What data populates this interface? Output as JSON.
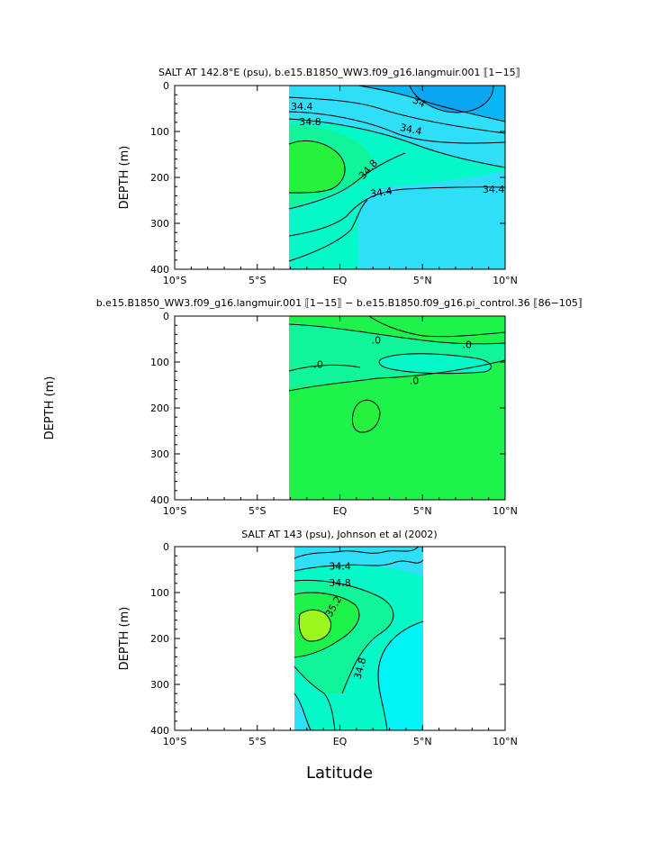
{
  "figure": {
    "ylabel": "DEPTH (m)",
    "xlabel": "Latitude"
  },
  "colors": {
    "deep_blue": "#09b5f5",
    "light_blue": "#2fdff8",
    "cyan": "#00f4f6",
    "aqua": "#05f8c8",
    "teal_green": "#10f59a",
    "green": "#1ef34b",
    "bright_green": "#26f23e",
    "lime": "#9bf71d",
    "line": "#000000"
  },
  "chart_data": [
    {
      "type": "heatmap",
      "title": "SALT AT 142.8°E (psu), b.e15.B1850_WW3.f09_g16.langmuir.001 ⟦1−15⟧",
      "ylabel": "DEPTH (m)",
      "xlabel": "",
      "xlim": [
        -10,
        10
      ],
      "ylim": [
        400,
        0
      ],
      "x_ticks": [
        -10,
        -5,
        0,
        5,
        10
      ],
      "x_tick_labels": [
        "10°S",
        "5°S",
        "EQ",
        "5°N",
        "10°N"
      ],
      "y_ticks": [
        0,
        100,
        200,
        300,
        400
      ],
      "y_tick_labels": [
        "0",
        "100",
        "200",
        "300",
        "400"
      ],
      "data_extent_lat": [
        -3.1,
        10
      ],
      "contour_labels": [
        {
          "text": "34",
          "lat": 4.8,
          "depth": 35,
          "rot": 25
        },
        {
          "text": "34.4",
          "lat": -2.3,
          "depth": 45,
          "rot": 0
        },
        {
          "text": "34.8",
          "lat": -1.8,
          "depth": 78,
          "rot": 0
        },
        {
          "text": "34.4",
          "lat": 4.3,
          "depth": 95,
          "rot": 12
        },
        {
          "text": "34.8",
          "lat": 1.7,
          "depth": 182,
          "rot": -48
        },
        {
          "text": "34.4",
          "lat": 2.5,
          "depth": 232,
          "rot": -8
        },
        {
          "text": "34.4",
          "lat": 9.3,
          "depth": 225,
          "rot": 0
        }
      ]
    },
    {
      "type": "heatmap",
      "title": "b.e15.B1850_WW3.f09_g16.langmuir.001 ⟦1−15⟧ − b.e15.B1850.f09_g16.pi_control.36 ⟦86−105⟧",
      "ylabel": "DEPTH (m)",
      "xlabel": "",
      "xlim": [
        -10,
        10
      ],
      "ylim": [
        400,
        0
      ],
      "x_ticks": [
        -10,
        -5,
        0,
        5,
        10
      ],
      "x_tick_labels": [
        "10°S",
        "5°S",
        "EQ",
        "5°N",
        "10°N"
      ],
      "y_ticks": [
        0,
        100,
        200,
        300,
        400
      ],
      "y_tick_labels": [
        "0",
        "100",
        "200",
        "300",
        "400"
      ],
      "data_extent_lat": [
        -3.1,
        10
      ],
      "contour_labels": [
        {
          "text": ".0",
          "lat": 2.2,
          "depth": 52,
          "rot": 0
        },
        {
          "text": ".0",
          "lat": 7.7,
          "depth": 62,
          "rot": 0
        },
        {
          "text": ".0",
          "lat": -1.3,
          "depth": 105,
          "rot": 0
        },
        {
          "text": ".0",
          "lat": 4.5,
          "depth": 140,
          "rot": 0
        }
      ]
    },
    {
      "type": "heatmap",
      "title": "SALT AT 143 (psu), Johnson et al (2002)",
      "ylabel": "DEPTH (m)",
      "xlabel": "Latitude",
      "xlim": [
        -10,
        10
      ],
      "ylim": [
        400,
        0
      ],
      "x_ticks": [
        -10,
        -5,
        0,
        5,
        10
      ],
      "x_tick_labels": [
        "10°S",
        "5°S",
        "EQ",
        "5°N",
        "10°N"
      ],
      "y_ticks": [
        0,
        100,
        200,
        300,
        400
      ],
      "y_tick_labels": [
        "0",
        "100",
        "200",
        "300",
        "400"
      ],
      "data_extent_lat": [
        -2.8,
        5
      ],
      "contour_labels": [
        {
          "text": "34.4",
          "lat": 0,
          "depth": 42,
          "rot": 0
        },
        {
          "text": "34.8",
          "lat": 0,
          "depth": 78,
          "rot": 0
        },
        {
          "text": "35.2",
          "lat": -0.4,
          "depth": 130,
          "rot": -60
        },
        {
          "text": "34.8",
          "lat": 1.2,
          "depth": 265,
          "rot": -75
        }
      ]
    }
  ]
}
